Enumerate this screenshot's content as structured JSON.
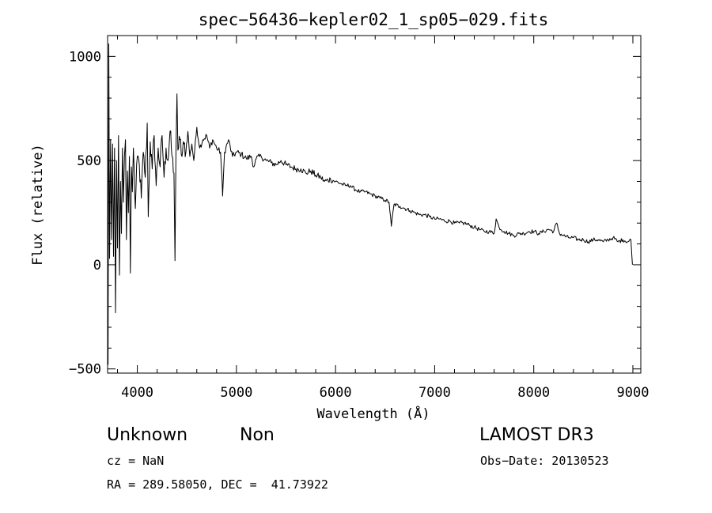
{
  "chart_data": {
    "type": "line",
    "title": "spec−56436−kepler02_1_sp05−029.fits",
    "xlabel": "Wavelength (Å)",
    "ylabel": "Flux (relative)",
    "xlim": [
      3700,
      9080
    ],
    "ylim": [
      -520,
      1100
    ],
    "xticks": [
      4000,
      5000,
      6000,
      7000,
      8000,
      9000
    ],
    "xtick_labels": [
      "4000",
      "5000",
      "6000",
      "7000",
      "8000",
      "9000"
    ],
    "yticks": [
      -500,
      0,
      500,
      1000
    ],
    "ytick_labels": [
      "−500",
      "0",
      "500",
      "1000"
    ],
    "series": [
      {
        "name": "spectrum",
        "color": "#000000",
        "anchors": [
          [
            3705,
            -480
          ],
          [
            3712,
            1060
          ],
          [
            3720,
            30
          ],
          [
            3730,
            600
          ],
          [
            3740,
            120
          ],
          [
            3750,
            580
          ],
          [
            3760,
            40
          ],
          [
            3770,
            560
          ],
          [
            3780,
            -230
          ],
          [
            3790,
            500
          ],
          [
            3800,
            80
          ],
          [
            3810,
            620
          ],
          [
            3820,
            -50
          ],
          [
            3830,
            400
          ],
          [
            3840,
            150
          ],
          [
            3850,
            560
          ],
          [
            3860,
            300
          ],
          [
            3870,
            520
          ],
          [
            3880,
            600
          ],
          [
            3890,
            120
          ],
          [
            3900,
            450
          ],
          [
            3910,
            250
          ],
          [
            3920,
            520
          ],
          [
            3930,
            -40
          ],
          [
            3940,
            470
          ],
          [
            3950,
            350
          ],
          [
            3960,
            560
          ],
          [
            3980,
            270
          ],
          [
            4000,
            520
          ],
          [
            4020,
            480
          ],
          [
            4040,
            320
          ],
          [
            4060,
            540
          ],
          [
            4080,
            420
          ],
          [
            4100,
            680
          ],
          [
            4110,
            230
          ],
          [
            4130,
            590
          ],
          [
            4150,
            460
          ],
          [
            4170,
            620
          ],
          [
            4190,
            380
          ],
          [
            4210,
            560
          ],
          [
            4230,
            470
          ],
          [
            4250,
            620
          ],
          [
            4270,
            420
          ],
          [
            4290,
            560
          ],
          [
            4310,
            500
          ],
          [
            4330,
            640
          ],
          [
            4350,
            520
          ],
          [
            4370,
            440
          ],
          [
            4380,
            20
          ],
          [
            4390,
            540
          ],
          [
            4400,
            820
          ],
          [
            4410,
            550
          ],
          [
            4430,
            600
          ],
          [
            4450,
            520
          ],
          [
            4470,
            580
          ],
          [
            4490,
            540
          ],
          [
            4510,
            640
          ],
          [
            4530,
            520
          ],
          [
            4550,
            580
          ],
          [
            4570,
            500
          ],
          [
            4600,
            660
          ],
          [
            4630,
            560
          ],
          [
            4660,
            600
          ],
          [
            4700,
            620
          ],
          [
            4730,
            560
          ],
          [
            4760,
            600
          ],
          [
            4800,
            560
          ],
          [
            4840,
            540
          ],
          [
            4861,
            330
          ],
          [
            4880,
            540
          ],
          [
            4920,
            600
          ],
          [
            4960,
            520
          ],
          [
            5000,
            540
          ],
          [
            5050,
            530
          ],
          [
            5100,
            510
          ],
          [
            5150,
            520
          ],
          [
            5175,
            470
          ],
          [
            5200,
            510
          ],
          [
            5250,
            520
          ],
          [
            5300,
            500
          ],
          [
            5350,
            490
          ],
          [
            5400,
            480
          ],
          [
            5450,
            500
          ],
          [
            5500,
            480
          ],
          [
            5550,
            470
          ],
          [
            5600,
            460
          ],
          [
            5650,
            460
          ],
          [
            5700,
            440
          ],
          [
            5750,
            450
          ],
          [
            5800,
            430
          ],
          [
            5850,
            420
          ],
          [
            5890,
            400
          ],
          [
            5950,
            410
          ],
          [
            6000,
            400
          ],
          [
            6050,
            390
          ],
          [
            6100,
            380
          ],
          [
            6150,
            380
          ],
          [
            6200,
            360
          ],
          [
            6250,
            350
          ],
          [
            6300,
            350
          ],
          [
            6350,
            340
          ],
          [
            6400,
            330
          ],
          [
            6450,
            320
          ],
          [
            6500,
            310
          ],
          [
            6540,
            300
          ],
          [
            6563,
            185
          ],
          [
            6590,
            290
          ],
          [
            6650,
            280
          ],
          [
            6700,
            270
          ],
          [
            6750,
            260
          ],
          [
            6800,
            250
          ],
          [
            6850,
            240
          ],
          [
            6900,
            240
          ],
          [
            6950,
            230
          ],
          [
            7000,
            220
          ],
          [
            7050,
            220
          ],
          [
            7100,
            210
          ],
          [
            7150,
            210
          ],
          [
            7200,
            200
          ],
          [
            7250,
            200
          ],
          [
            7300,
            200
          ],
          [
            7350,
            190
          ],
          [
            7400,
            180
          ],
          [
            7450,
            170
          ],
          [
            7500,
            160
          ],
          [
            7550,
            160
          ],
          [
            7600,
            150
          ],
          [
            7620,
            220
          ],
          [
            7650,
            180
          ],
          [
            7700,
            160
          ],
          [
            7750,
            150
          ],
          [
            7800,
            140
          ],
          [
            7850,
            150
          ],
          [
            7900,
            150
          ],
          [
            7950,
            160
          ],
          [
            8000,
            160
          ],
          [
            8050,
            150
          ],
          [
            8100,
            160
          ],
          [
            8150,
            170
          ],
          [
            8200,
            160
          ],
          [
            8230,
            200
          ],
          [
            8260,
            150
          ],
          [
            8300,
            140
          ],
          [
            8350,
            130
          ],
          [
            8400,
            130
          ],
          [
            8450,
            120
          ],
          [
            8500,
            120
          ],
          [
            8550,
            110
          ],
          [
            8600,
            120
          ],
          [
            8650,
            120
          ],
          [
            8700,
            110
          ],
          [
            8750,
            120
          ],
          [
            8800,
            130
          ],
          [
            8850,
            110
          ],
          [
            8900,
            120
          ],
          [
            8950,
            110
          ],
          [
            8980,
            120
          ],
          [
            8995,
            0
          ]
        ]
      }
    ]
  },
  "info": {
    "object_type": "Unknown",
    "subclass": "Non",
    "survey": "LAMOST DR3",
    "cz": "cz = NaN",
    "obs_date": "Obs−Date: 20130523",
    "coords": "RA = 289.58050, DEC =  41.73922"
  }
}
